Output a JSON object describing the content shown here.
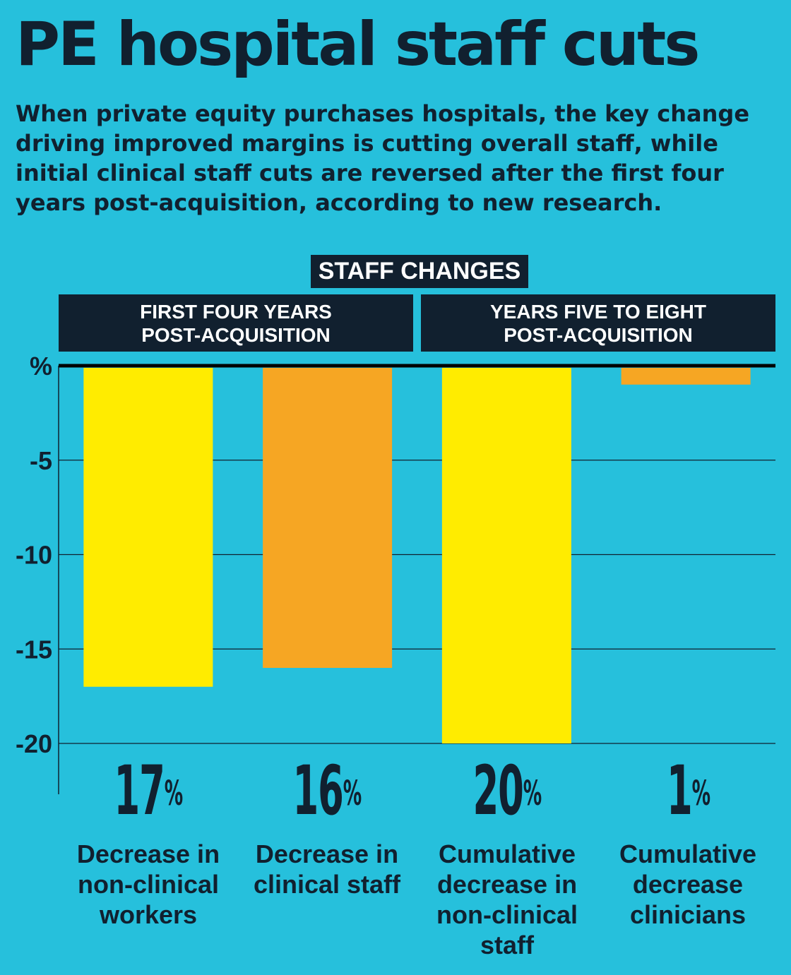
{
  "title": "PE hospital staff cuts",
  "subtitle": "When private equity purchases hospitals, the key change driving improved margins is cutting overall staff, while initial clinical staff cuts are reversed after the first four years post-acquisition, according to new research.",
  "section_label": "STAFF CHANGES",
  "periods": [
    {
      "line1": "FIRST FOUR YEARS",
      "line2": "POST-ACQUISITION"
    },
    {
      "line1": "YEARS FIVE TO EIGHT",
      "line2": "POST-ACQUISITION"
    }
  ],
  "stats": [
    {
      "value": "17",
      "unit": "%",
      "line1": "Decrease in",
      "line2": "non-clinical",
      "line3": "workers",
      "line4": ""
    },
    {
      "value": "16",
      "unit": "%",
      "line1": "Decrease in",
      "line2": "clinical staff",
      "line3": "",
      "line4": ""
    },
    {
      "value": "20",
      "unit": "%",
      "line1": "Cumulative",
      "line2": "decrease in",
      "line3": "non-clinical",
      "line4": "staff"
    },
    {
      "value": "1",
      "unit": "%",
      "line1": "Cumulative",
      "line2": "decrease",
      "line3": "clinicians",
      "line4": ""
    }
  ],
  "chart_data": {
    "type": "bar",
    "ylabel": "%",
    "ylim": [
      -20,
      0
    ],
    "yticks": [
      0,
      -5,
      -10,
      -15,
      -20
    ],
    "ytick_labels": [
      "%",
      "-5",
      "-10",
      "-15",
      "-20"
    ],
    "grid": true,
    "values": [
      -17,
      -16,
      -20,
      -1
    ],
    "colors": [
      "#ffec00",
      "#f6a623",
      "#ffec00",
      "#f6a623"
    ]
  },
  "colors": {
    "background": "#26c0dc",
    "dark": "#11202f",
    "yellow": "#ffec00",
    "orange": "#f6a623"
  }
}
